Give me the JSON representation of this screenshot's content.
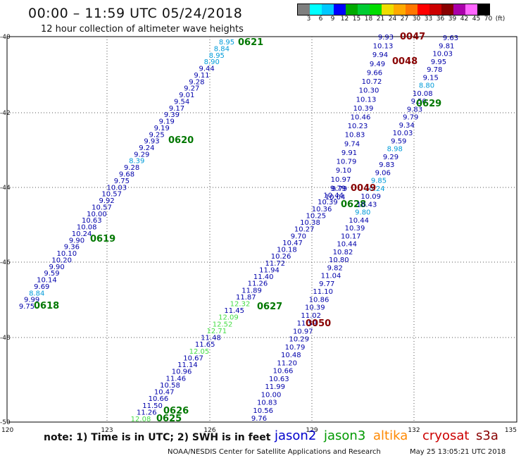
{
  "header": {
    "title": "00:00 – 11:59 UTC 05/24/2018",
    "subtitle": "12 hour collection of altimeter wave heights"
  },
  "colorbar": {
    "colors": [
      "#7f7f7f",
      "#00ffff",
      "#00c8ff",
      "#0000ff",
      "#00aa00",
      "#00cc33",
      "#00dd00",
      "#eedd00",
      "#ffaa00",
      "#ff7700",
      "#ff0000",
      "#cc0000",
      "#880000",
      "#aa00aa",
      "#ff66ff",
      "#000000"
    ],
    "labels": [
      "3",
      "6",
      "9",
      "12",
      "15",
      "18",
      "21",
      "24",
      "27",
      "30",
      "33",
      "36",
      "39",
      "42",
      "45",
      "70",
      "(ft)"
    ]
  },
  "map": {
    "xticks": [
      "120",
      "123",
      "126",
      "129",
      "132",
      "135"
    ],
    "yticks": [
      "-40",
      "-42",
      "-44",
      "-46",
      "-48",
      "-50"
    ]
  },
  "palette": {
    "blue": "#0000aa",
    "cyan": "#009bd9",
    "lightgreen": "#44dd44",
    "green": "#007700",
    "darkred": "#880000"
  },
  "tracks": [
    {
      "name": "0618",
      "points": [
        [
          "9.75",
          "blue"
        ],
        [
          "9.99",
          "blue"
        ],
        [
          "8.84",
          "cyan"
        ],
        [
          "9.69",
          "blue"
        ],
        [
          "10.14",
          "blue"
        ],
        [
          "9.59",
          "blue"
        ],
        [
          "9.90",
          "blue"
        ],
        [
          "10.20",
          "blue"
        ],
        [
          "10.10",
          "blue"
        ],
        [
          "9.36",
          "blue"
        ],
        [
          "9.90",
          "blue"
        ],
        [
          "10.24",
          "blue"
        ],
        [
          "10.08",
          "blue"
        ],
        [
          "10.63",
          "blue"
        ],
        [
          "10.00",
          "blue"
        ],
        [
          "10.57",
          "blue"
        ],
        [
          "9.92",
          "blue"
        ],
        [
          "10.57",
          "blue"
        ],
        [
          "10.03",
          "blue"
        ],
        [
          "9.75",
          "blue"
        ],
        [
          "9.68",
          "blue"
        ],
        [
          "9.28",
          "blue"
        ],
        [
          "8.39",
          "cyan"
        ],
        [
          "9.29",
          "blue"
        ],
        [
          "9.24",
          "blue"
        ],
        [
          "9.93",
          "blue"
        ],
        [
          "9.25",
          "blue"
        ],
        [
          "9.19",
          "blue"
        ],
        [
          "9.19",
          "blue"
        ],
        [
          "9.39",
          "blue"
        ],
        [
          "9.17",
          "blue"
        ],
        [
          "9.54",
          "blue"
        ],
        [
          "9.01",
          "blue"
        ],
        [
          "9.27",
          "blue"
        ],
        [
          "9.28",
          "blue"
        ],
        [
          "9.11",
          "blue"
        ],
        [
          "9.44",
          "blue"
        ],
        [
          "8.90",
          "cyan"
        ],
        [
          "8.95",
          "cyan"
        ],
        [
          "8.84",
          "cyan"
        ],
        [
          "8.95",
          "cyan"
        ]
      ],
      "labels": [
        {
          "text": "0618",
          "color": "green"
        },
        {
          "text": "0619",
          "color": "green"
        },
        {
          "text": "0620",
          "color": "green"
        },
        {
          "text": "0621",
          "color": "green"
        }
      ]
    },
    {
      "name": "0625",
      "points": [
        [
          "12.08",
          "lightgreen"
        ],
        [
          "11.26",
          "blue"
        ],
        [
          "11.50",
          "blue"
        ],
        [
          "10.66",
          "blue"
        ],
        [
          "10.47",
          "blue"
        ],
        [
          "10.58",
          "blue"
        ],
        [
          "11.46",
          "blue"
        ],
        [
          "10.96",
          "blue"
        ],
        [
          "11.14",
          "blue"
        ],
        [
          "10.67",
          "blue"
        ],
        [
          "12.05",
          "lightgreen"
        ],
        [
          "11.65",
          "blue"
        ],
        [
          "11.48",
          "blue"
        ],
        [
          "12.71",
          "lightgreen"
        ],
        [
          "12.52",
          "lightgreen"
        ],
        [
          "12.09",
          "lightgreen"
        ],
        [
          "11.45",
          "blue"
        ],
        [
          "12.32",
          "lightgreen"
        ],
        [
          "11.87",
          "blue"
        ],
        [
          "11.89",
          "blue"
        ],
        [
          "11.26",
          "blue"
        ],
        [
          "11.40",
          "blue"
        ],
        [
          "11.94",
          "blue"
        ],
        [
          "11.72",
          "blue"
        ],
        [
          "10.26",
          "blue"
        ],
        [
          "10.18",
          "blue"
        ],
        [
          "10.47",
          "blue"
        ],
        [
          "9.70",
          "blue"
        ],
        [
          "10.27",
          "blue"
        ],
        [
          "10.38",
          "blue"
        ],
        [
          "10.25",
          "blue"
        ],
        [
          "10.36",
          "blue"
        ],
        [
          "10.39",
          "blue"
        ],
        [
          "10.44",
          "blue"
        ],
        [
          "9.79",
          "blue"
        ]
      ],
      "labels": [
        {
          "text": "0625",
          "color": "green"
        },
        {
          "text": "0626",
          "color": "green"
        },
        {
          "text": "0627",
          "color": "green"
        },
        {
          "text": "0628",
          "color": "green"
        }
      ]
    },
    {
      "name": "0050",
      "points": [
        [
          "9.76",
          "blue"
        ],
        [
          "10.56",
          "blue"
        ],
        [
          "10.83",
          "blue"
        ],
        [
          "10.00",
          "blue"
        ],
        [
          "11.99",
          "blue"
        ],
        [
          "10.63",
          "blue"
        ],
        [
          "10.66",
          "blue"
        ],
        [
          "11.20",
          "blue"
        ],
        [
          "10.48",
          "blue"
        ],
        [
          "10.79",
          "blue"
        ],
        [
          "10.29",
          "blue"
        ],
        [
          "10.97",
          "blue"
        ],
        [
          "11.59",
          "blue"
        ],
        [
          "11.02",
          "blue"
        ],
        [
          "10.39",
          "blue"
        ],
        [
          "10.86",
          "blue"
        ],
        [
          "11.10",
          "blue"
        ],
        [
          "9.77",
          "blue"
        ],
        [
          "11.04",
          "blue"
        ],
        [
          "9.82",
          "blue"
        ],
        [
          "10.80",
          "blue"
        ],
        [
          "10.82",
          "blue"
        ],
        [
          "10.44",
          "blue"
        ],
        [
          "10.17",
          "blue"
        ],
        [
          "10.39",
          "blue"
        ],
        [
          "10.44",
          "blue"
        ],
        [
          "9.80",
          "cyan"
        ],
        [
          "10.43",
          "blue"
        ],
        [
          "10.09",
          "blue"
        ],
        [
          "10.24",
          "cyan"
        ],
        [
          "9.85",
          "cyan"
        ],
        [
          "9.06",
          "blue"
        ],
        [
          "9.83",
          "blue"
        ],
        [
          "9.29",
          "blue"
        ],
        [
          "8.98",
          "cyan"
        ],
        [
          "9.59",
          "blue"
        ],
        [
          "10.03",
          "blue"
        ],
        [
          "9.34",
          "blue"
        ],
        [
          "9.79",
          "blue"
        ],
        [
          "9.83",
          "blue"
        ],
        [
          "9.50",
          "blue"
        ],
        [
          "10.08",
          "blue"
        ],
        [
          "8.80",
          "cyan"
        ],
        [
          "9.15",
          "blue"
        ],
        [
          "9.78",
          "blue"
        ],
        [
          "9.95",
          "blue"
        ],
        [
          "10.03",
          "blue"
        ],
        [
          "9.81",
          "blue"
        ],
        [
          "9.63",
          "blue"
        ]
      ],
      "labels": [
        {
          "text": "0050",
          "color": "darkred"
        },
        {
          "text": "0629",
          "color": "green"
        }
      ]
    },
    {
      "name": "0047",
      "points": [
        [
          "9.93",
          "blue"
        ],
        [
          "10.13",
          "blue"
        ],
        [
          "9.94",
          "blue"
        ],
        [
          "9.49",
          "blue"
        ],
        [
          "9.66",
          "blue"
        ],
        [
          "10.72",
          "blue"
        ],
        [
          "10.30",
          "blue"
        ],
        [
          "10.13",
          "blue"
        ],
        [
          "10.39",
          "blue"
        ],
        [
          "10.46",
          "blue"
        ],
        [
          "10.23",
          "blue"
        ],
        [
          "10.83",
          "blue"
        ],
        [
          "9.74",
          "blue"
        ],
        [
          "9.91",
          "blue"
        ],
        [
          "10.79",
          "blue"
        ],
        [
          "9.10",
          "blue"
        ],
        [
          "10.97",
          "blue"
        ],
        [
          "9.79",
          "blue"
        ],
        [
          "10.04",
          "blue"
        ]
      ],
      "labels": [
        {
          "text": "0047",
          "color": "darkred"
        },
        {
          "text": "0048",
          "color": "darkred"
        },
        {
          "text": "0049",
          "color": "darkred"
        }
      ]
    }
  ],
  "footer": {
    "note": "note: 1) Time is in UTC; 2) SWH is in feet",
    "legend": [
      {
        "text": "jason2",
        "color": "#0000cc"
      },
      {
        "text": "jason3",
        "color": "#009900"
      },
      {
        "text": "altika",
        "color": "#ff8800"
      },
      {
        "text": "cryosat",
        "color": "#cc0000"
      },
      {
        "text": "s3a",
        "color": "#880000"
      }
    ],
    "credit": "NOAA/NESDIS Center for Satellite Applications and Research",
    "timestamp": "May 25 13:05:21 UTC 2018"
  }
}
